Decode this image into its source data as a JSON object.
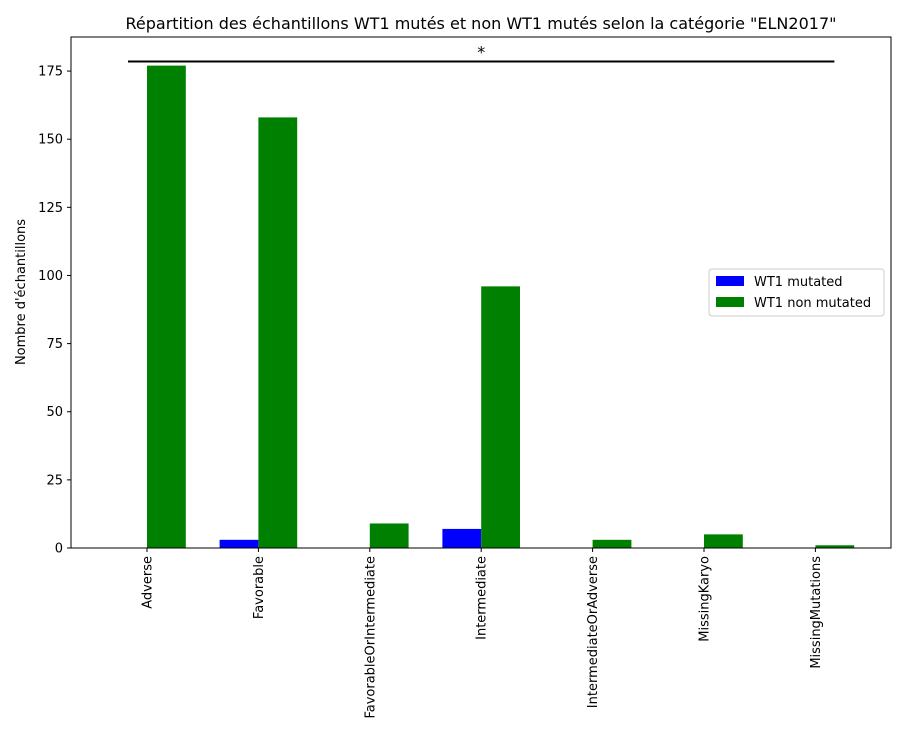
{
  "chart_data": {
    "type": "bar",
    "title": "Répartition des échantillons WT1 mutés et non WT1 mutés selon la catégorie \"ELN2017\"",
    "xlabel": "",
    "ylabel": "Nombre d'échantillons",
    "categories": [
      "Adverse",
      "Favorable",
      "FavorableOrIntermediate",
      "Intermediate",
      "IntermediateOrAdverse",
      "MissingKaryo",
      "MissingMutations"
    ],
    "series": [
      {
        "name": "WT1 mutated",
        "color": "#0000ff",
        "values": [
          0,
          3,
          0,
          7,
          0,
          0,
          0
        ]
      },
      {
        "name": "WT1 non mutated",
        "color": "#008000",
        "values": [
          177,
          158,
          9,
          96,
          3,
          5,
          1
        ]
      }
    ],
    "ylim": [
      0,
      187.5
    ],
    "yticks": [
      0,
      25,
      50,
      75,
      100,
      125,
      150,
      175
    ],
    "grid": false,
    "legend_position": "center-right",
    "annotation": {
      "text": "*",
      "from_category": "Adverse",
      "to_category": "MissingMutations",
      "y": 178.5
    }
  }
}
